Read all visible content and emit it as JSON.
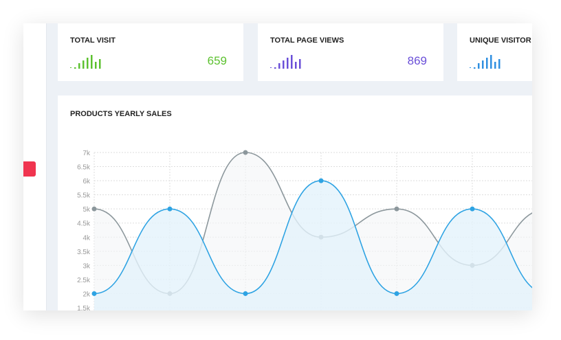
{
  "stats": [
    {
      "title": "TOTAL VISIT",
      "value": "659",
      "color": "#5cc12f",
      "bars": [
        1,
        4,
        6,
        8,
        10,
        5,
        7
      ]
    },
    {
      "title": "TOTAL PAGE VIEWS",
      "value": "869",
      "color": "#6a4fd8",
      "bars": [
        1,
        4,
        6,
        8,
        10,
        5,
        7
      ]
    },
    {
      "title": "UNIQUE VISITOR",
      "value": "",
      "color": "#2f8fe0",
      "bars": [
        1,
        4,
        6,
        8,
        10,
        5,
        7
      ]
    }
  ],
  "chart_title": "PRODUCTS YEARLY SALES",
  "chart_data": {
    "type": "area",
    "title": "PRODUCTS YEARLY SALES",
    "ylim": [
      1500,
      7000
    ],
    "yticks": [
      "1.5k",
      "2k",
      "2.5k",
      "3k",
      "3.5k",
      "4k",
      "4.5k",
      "5k",
      "5.5k",
      "6k",
      "6.5k",
      "7k"
    ],
    "grid": true,
    "series": [
      {
        "color": "#2ea3e3",
        "values": [
          2000,
          5000,
          2000,
          6000,
          2000,
          5000,
          2000
        ]
      },
      {
        "color": "#8c979c",
        "values": [
          5000,
          2000,
          7000,
          4000,
          5000,
          3000,
          5000
        ]
      }
    ]
  }
}
